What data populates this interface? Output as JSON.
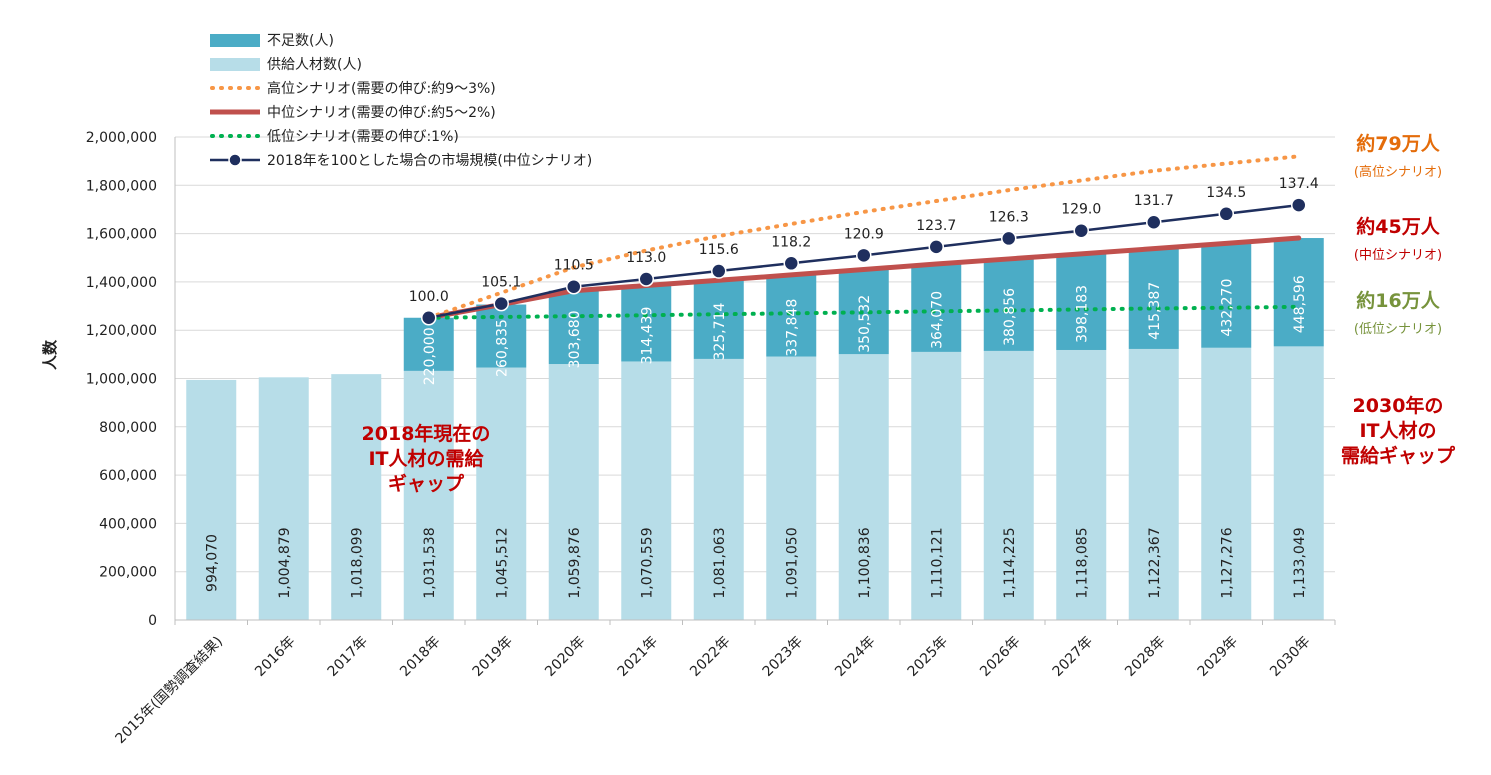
{
  "chart_data": {
    "type": "bar",
    "stacked": true,
    "ylabel": "人数",
    "ylim": [
      0,
      2000000
    ],
    "y_ticks": [
      0,
      200000,
      400000,
      600000,
      800000,
      1000000,
      1200000,
      1400000,
      1600000,
      1800000,
      2000000
    ],
    "y_tick_labels": [
      "0",
      "200,000",
      "400,000",
      "600,000",
      "800,000",
      "1,000,000",
      "1,200,000",
      "1,400,000",
      "1,600,000",
      "1,800,000",
      "2,000,000"
    ],
    "grid": true,
    "categories": [
      "2015年(国勢調査結果)",
      "2016年",
      "2017年",
      "2018年",
      "2019年",
      "2020年",
      "2021年",
      "2022年",
      "2023年",
      "2024年",
      "2025年",
      "2026年",
      "2027年",
      "2028年",
      "2029年",
      "2030年"
    ],
    "series": [
      {
        "name": "供給人材数(人)",
        "type": "bar",
        "color": "#b7dde8",
        "values": [
          994070,
          1004879,
          1018099,
          1031538,
          1045512,
          1059876,
          1070559,
          1081063,
          1091050,
          1100836,
          1110121,
          1114225,
          1118085,
          1122367,
          1127276,
          1133049
        ],
        "labels": [
          "994,070",
          "1,004,879",
          "1,018,099",
          "1,031,538",
          "1,045,512",
          "1,059,876",
          "1,070,559",
          "1,081,063",
          "1,091,050",
          "1,100,836",
          "1,110,121",
          "1,114,225",
          "1,118,085",
          "1,122,367",
          "1,127,276",
          "1,133,049"
        ]
      },
      {
        "name": "不足数(人)",
        "type": "bar",
        "color": "#4bacc6",
        "values": [
          null,
          null,
          null,
          220000,
          260835,
          303680,
          314439,
          325714,
          337848,
          350532,
          364070,
          380856,
          398183,
          415387,
          432270,
          448596
        ],
        "labels": [
          "",
          "",
          "",
          "220,000",
          "260,835",
          "303,680",
          "314,439",
          "325,714",
          "337,848",
          "350,532",
          "364,070",
          "380,856",
          "398,183",
          "415,387",
          "432,270",
          "448,596"
        ]
      },
      {
        "name": "高位シナリオ(需要の伸び:約9〜3%)",
        "type": "line",
        "style": "dotted",
        "color": "#f79646",
        "values": [
          null,
          null,
          null,
          1251538,
          1355000,
          1460000,
          1530000,
          1590000,
          1640000,
          1690000,
          1735000,
          1780000,
          1820000,
          1860000,
          1890000,
          1920000
        ]
      },
      {
        "name": "中位シナリオ(需要の伸び:約5〜2%)",
        "type": "line",
        "style": "solid",
        "color": "#c0504d",
        "values": [
          null,
          null,
          null,
          1251538,
          1306347,
          1363556,
          1384998,
          1406777,
          1428898,
          1451368,
          1474191,
          1495081,
          1516268,
          1537754,
          1559546,
          1581645
        ]
      },
      {
        "name": "低位シナリオ(需要の伸び:1%)",
        "type": "line",
        "style": "dotted",
        "color": "#00b050",
        "values": [
          null,
          null,
          null,
          1251538,
          1255000,
          1258000,
          1262000,
          1266000,
          1270000,
          1274000,
          1278000,
          1282000,
          1286000,
          1290000,
          1293000,
          1297000
        ]
      },
      {
        "name": "2018年を100とした場合の市場規模(中位シナリオ)",
        "type": "line",
        "style": "solid-marker",
        "color": "#1f2f5e",
        "values": [
          null,
          null,
          null,
          1251538,
          1310000,
          1380000,
          1412000,
          1445000,
          1477000,
          1510000,
          1545000,
          1580000,
          1612000,
          1647000,
          1682000,
          1718000
        ],
        "index_values": [
          null,
          null,
          null,
          100.0,
          105.1,
          110.5,
          113.0,
          115.6,
          118.2,
          120.9,
          123.7,
          126.3,
          129.0,
          131.7,
          134.5,
          137.4
        ],
        "index_labels": [
          "",
          "",
          "",
          "100.0",
          "105.1",
          "110.5",
          "113.0",
          "115.6",
          "118.2",
          "120.9",
          "123.7",
          "126.3",
          "129.0",
          "131.7",
          "134.5",
          "137.4"
        ]
      }
    ],
    "legend_position": "top-left",
    "annotations": {
      "high_big": "約79万人",
      "high_small": "(高位シナリオ)",
      "mid_big": "約45万人",
      "mid_small": "(中位シナリオ)",
      "low_big": "約16万人",
      "low_small": "(低位シナリオ)",
      "gap2018": [
        "2018年現在の",
        "IT人材の需給",
        "ギャップ"
      ],
      "gap2030": [
        "2030年の",
        "IT人材の",
        "需給ギャップ"
      ]
    },
    "annotation_colors": {
      "high": "#e46c0a",
      "mid": "#c00000",
      "low": "#77933c",
      "gap": "#c00000"
    }
  }
}
